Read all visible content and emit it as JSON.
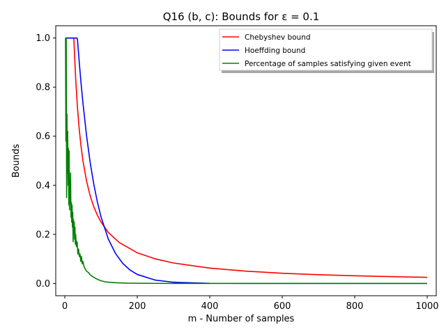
{
  "chart_data": {
    "type": "line",
    "title": "Q16 (b, c): Bounds for ε = 0.1",
    "xlabel": "m - Number of samples",
    "ylabel": "Bounds",
    "xlim": [
      -25,
      1025
    ],
    "ylim": [
      -0.05,
      1.05
    ],
    "xticks": [
      0,
      200,
      400,
      600,
      800,
      1000
    ],
    "xtick_labels": [
      "0",
      "200",
      "400",
      "600",
      "800",
      "1000"
    ],
    "yticks": [
      0.0,
      0.2,
      0.4,
      0.6,
      0.8,
      1.0
    ],
    "ytick_labels": [
      "0.0",
      "0.2",
      "0.4",
      "0.6",
      "0.8",
      "1.0"
    ],
    "grid": false,
    "legend_position": "top-right",
    "series": [
      {
        "name": "Chebyshev bound",
        "color": "#ff0000",
        "x": [
          1,
          25,
          26,
          30,
          35,
          40,
          45,
          50,
          60,
          70,
          80,
          90,
          100,
          120,
          150,
          200,
          250,
          300,
          400,
          500,
          600,
          700,
          800,
          900,
          1000
        ],
        "y": [
          1.0,
          1.0,
          0.962,
          0.833,
          0.714,
          0.625,
          0.556,
          0.5,
          0.417,
          0.357,
          0.3125,
          0.278,
          0.25,
          0.208,
          0.167,
          0.125,
          0.1,
          0.0833,
          0.0625,
          0.05,
          0.0417,
          0.0357,
          0.03125,
          0.0278,
          0.025
        ]
      },
      {
        "name": "Hoeffding bound",
        "color": "#0000ff",
        "x": [
          1,
          34,
          35,
          40,
          45,
          50,
          60,
          70,
          80,
          90,
          100,
          120,
          140,
          160,
          180,
          200,
          250,
          300,
          400,
          500,
          600,
          700,
          800,
          900,
          1000
        ],
        "y": [
          1.0,
          1.0,
          0.993,
          0.899,
          0.813,
          0.736,
          0.602,
          0.493,
          0.404,
          0.331,
          0.271,
          0.181,
          0.122,
          0.0815,
          0.0546,
          0.0366,
          0.0135,
          0.00496,
          0.00067,
          9e-05,
          1e-05,
          0.0,
          0.0,
          0.0,
          0.0
        ]
      },
      {
        "name": "Percentage of samples satisfying given event",
        "color": "#008000",
        "x": [
          1,
          2,
          3,
          4,
          5,
          6,
          7,
          8,
          9,
          10,
          11,
          12,
          13,
          14,
          15,
          16,
          17,
          18,
          19,
          20,
          21,
          22,
          23,
          24,
          25,
          26,
          27,
          28,
          29,
          30,
          32,
          34,
          36,
          38,
          40,
          42,
          44,
          46,
          48,
          50,
          53,
          56,
          60,
          65,
          70,
          75,
          80,
          90,
          100,
          110,
          120,
          140,
          160,
          180,
          200,
          250,
          300,
          400,
          500,
          600,
          700,
          800,
          900,
          1000
        ],
        "y": [
          1.0,
          1.0,
          0.58,
          1.0,
          0.35,
          0.69,
          0.45,
          0.62,
          0.4,
          0.55,
          0.32,
          0.54,
          0.3,
          0.42,
          0.33,
          0.45,
          0.27,
          0.33,
          0.25,
          0.32,
          0.23,
          0.29,
          0.17,
          0.26,
          0.21,
          0.25,
          0.18,
          0.23,
          0.16,
          0.2,
          0.15,
          0.17,
          0.12,
          0.14,
          0.11,
          0.12,
          0.09,
          0.11,
          0.08,
          0.09,
          0.07,
          0.06,
          0.05,
          0.045,
          0.035,
          0.03,
          0.025,
          0.017,
          0.011,
          0.007,
          0.005,
          0.003,
          0.002,
          0.001,
          0.0008,
          0.0003,
          0.0001,
          0.0,
          0.0,
          0.0,
          0.0,
          0.0,
          0.0,
          0.0
        ]
      }
    ]
  }
}
